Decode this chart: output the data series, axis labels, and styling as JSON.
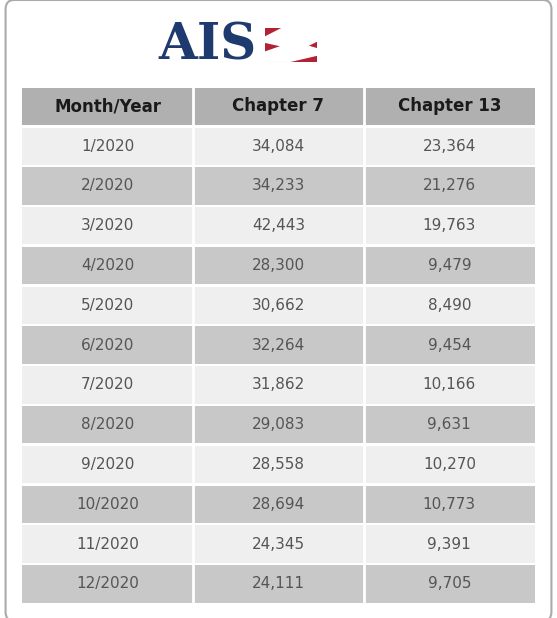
{
  "headers": [
    "Month/Year",
    "Chapter 7",
    "Chapter 13"
  ],
  "rows": [
    [
      "1/2020",
      "34,084",
      "23,364"
    ],
    [
      "2/2020",
      "34,233",
      "21,276"
    ],
    [
      "3/2020",
      "42,443",
      "19,763"
    ],
    [
      "4/2020",
      "28,300",
      "9,479"
    ],
    [
      "5/2020",
      "30,662",
      "8,490"
    ],
    [
      "6/2020",
      "32,264",
      "9,454"
    ],
    [
      "7/2020",
      "31,862",
      "10,166"
    ],
    [
      "8/2020",
      "29,083",
      "9,631"
    ],
    [
      "9/2020",
      "28,558",
      "10,270"
    ],
    [
      "10/2020",
      "28,694",
      "10,773"
    ],
    [
      "11/2020",
      "24,345",
      "9,391"
    ],
    [
      "12/2020",
      "24,111",
      "9,705"
    ]
  ],
  "header_bg": "#b0b0b0",
  "row_bg_light": "#f0efef",
  "row_bg_dark": "#c8c8c8",
  "header_text_color": "#1a1a1a",
  "row_text_color": "#555555",
  "fig_bg": "#ffffff",
  "outer_border_color": "#aaaaaa",
  "ais_text_color": "#1e3a6e",
  "red_box_color": "#b22234",
  "white_line_color": "#ffffff",
  "divider_color": "#ffffff",
  "header_font_size": 12,
  "row_font_size": 11,
  "logo_font_size": 36
}
